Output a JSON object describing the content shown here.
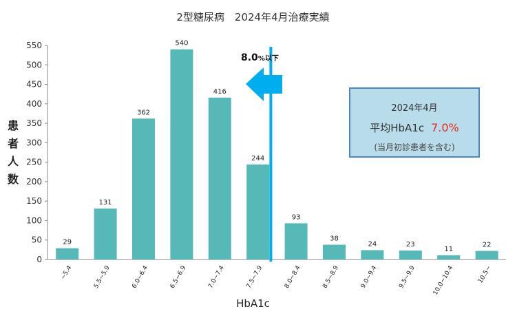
{
  "chart_data": {
    "type": "bar",
    "title": "2型糖尿病　2024年4月治療実績",
    "xlabel": "HbA1c",
    "ylabel": "患者人数",
    "ylim": [
      0,
      550
    ],
    "yticks": [
      0,
      50,
      100,
      150,
      200,
      250,
      300,
      350,
      400,
      450,
      500,
      550
    ],
    "categories": [
      "~5.4",
      "5.5~5.9",
      "6.0~6.4",
      "6.5~6.9",
      "7.0~7.4",
      "7.5~7.9",
      "8.0~8.4",
      "8.5~8.9",
      "9.0~9.4",
      "9.5~9.9",
      "10.0~10.4",
      "10.5~"
    ],
    "values": [
      29,
      131,
      362,
      540,
      416,
      244,
      93,
      38,
      24,
      23,
      11,
      22
    ],
    "bar_color": "#57b8b8",
    "threshold": {
      "position": "8.0~8.4",
      "line_color": "#00aeef",
      "label_main": "8.0",
      "label_small": "%以下"
    },
    "grid": false
  },
  "info_box": {
    "line1": "2024年4月",
    "line2_label": "平均HbA1c",
    "line2_value": "7.0%",
    "line3": "(当月初診患者を含む)"
  }
}
